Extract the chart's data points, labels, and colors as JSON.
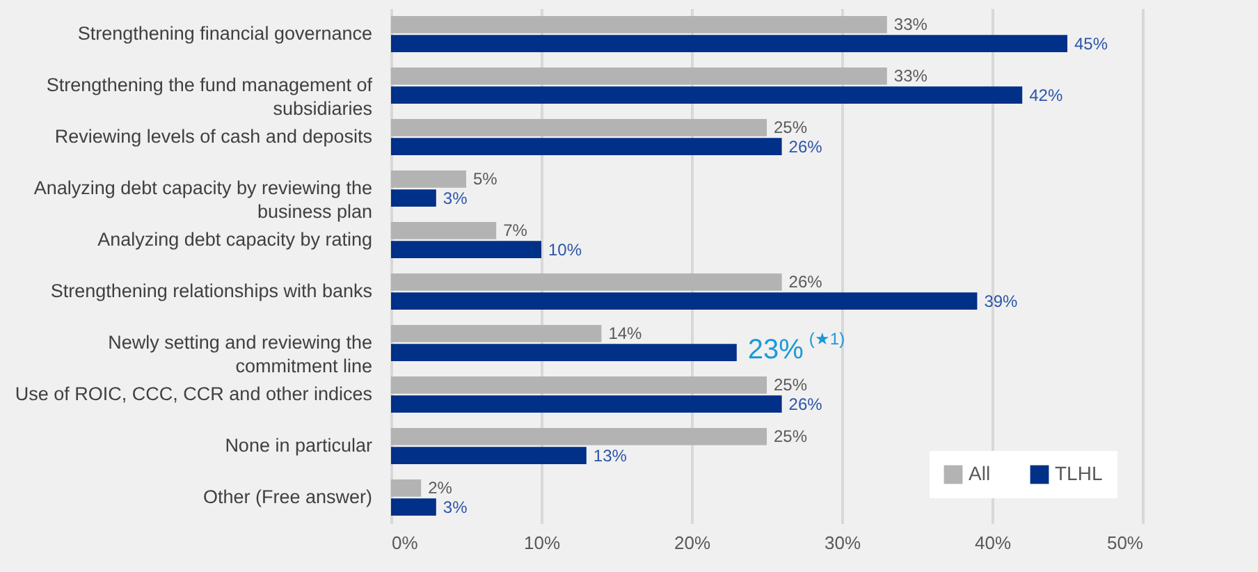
{
  "chart_data": {
    "type": "bar",
    "orientation": "horizontal",
    "categories": [
      "Strengthening financial governance",
      "Strengthening the fund management of subsidiaries",
      "Reviewing levels of cash and deposits",
      "Analyzing debt capacity by reviewing the business plan",
      "Analyzing debt capacity by rating",
      "Strengthening relationships with banks",
      "Newly setting and reviewing the commitment line",
      "Use of ROIC, CCC, CCR and other indices",
      "None in particular",
      "Other (Free answer)"
    ],
    "series": [
      {
        "name": "All",
        "color": "#b3b3b3",
        "values": [
          33,
          33,
          25,
          5,
          7,
          26,
          14,
          25,
          25,
          2
        ],
        "value_labels": [
          "33%",
          "33%",
          "25%",
          "5%",
          "7%",
          "26%",
          "14%",
          "25%",
          "25%",
          "2%"
        ]
      },
      {
        "name": "TLHL",
        "color": "#003087",
        "values": [
          45,
          42,
          26,
          3,
          10,
          39,
          23,
          26,
          13,
          3
        ],
        "value_labels": [
          "45%",
          "42%",
          "26%",
          "3%",
          "10%",
          "39%",
          "23%$^{(★1)}$",
          "26%",
          "13%",
          "3%"
        ]
      }
    ],
    "xlim": [
      0,
      50
    ],
    "xticks": [
      {
        "value": 0,
        "label": "0%"
      },
      {
        "value": 10,
        "label": "10%"
      },
      {
        "value": 20,
        "label": "20%"
      },
      {
        "value": 30,
        "label": "30%"
      },
      {
        "value": 40,
        "label": "40%"
      },
      {
        "value": 50,
        "label": "50%"
      }
    ],
    "grid": "x",
    "legend": "bottom right"
  }
}
